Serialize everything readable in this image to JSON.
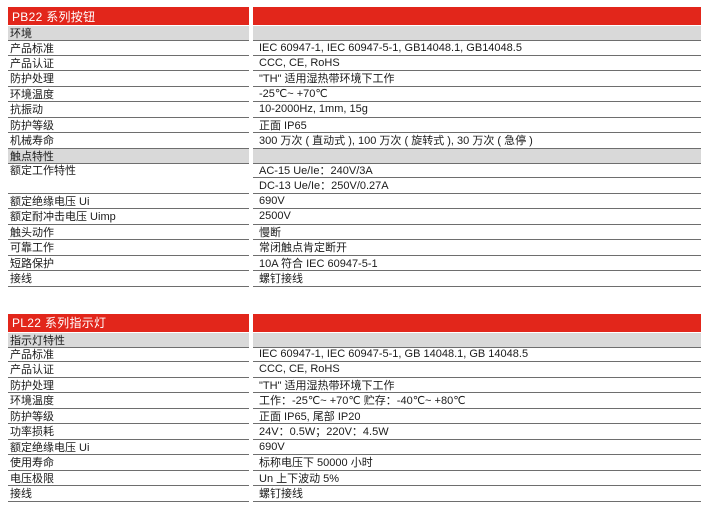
{
  "colors": {
    "header_red": "#E2261B",
    "section_gray": "#D9D9D9",
    "rule_gray": "#6E6E6E",
    "text": "#1A1A1A",
    "title_text": "#FFFFFF"
  },
  "tables": [
    {
      "title": "PB22 系列按钮",
      "sections": [
        {
          "header": "环境",
          "rows": [
            {
              "label": "产品标准",
              "values": [
                "IEC 60947-1, IEC 60947-5-1, GB14048.1, GB14048.5"
              ]
            },
            {
              "label": "产品认证",
              "values": [
                "CCC, CE, RoHS"
              ]
            },
            {
              "label": "防护处理",
              "values": [
                "\"TH\" 适用湿热带环境下工作"
              ]
            },
            {
              "label": "环境温度",
              "values": [
                "-25℃~ +70℃"
              ]
            },
            {
              "label": "抗振动",
              "values": [
                "10-2000Hz, 1mm, 15g"
              ]
            },
            {
              "label": "防护等级",
              "values": [
                "正面 IP65"
              ]
            },
            {
              "label": "机械寿命",
              "values": [
                "300 万次 ( 直动式 ), 100 万次 ( 旋转式 ), 30 万次 ( 急停 )"
              ]
            }
          ]
        },
        {
          "header": "触点特性",
          "rows": [
            {
              "label": "额定工作特性",
              "values": [
                "AC-15 Ue/Ie：240V/3A",
                "DC-13 Ue/Ie：250V/0.27A"
              ]
            },
            {
              "label": "额定绝缘电压 Ui",
              "values": [
                "690V"
              ]
            },
            {
              "label": "额定耐冲击电压 Uimp",
              "values": [
                "2500V"
              ]
            },
            {
              "label": "触头动作",
              "values": [
                "慢断"
              ]
            },
            {
              "label": "可靠工作",
              "values": [
                "常闭触点肯定断开"
              ]
            },
            {
              "label": "短路保护",
              "values": [
                "10A 符合 IEC 60947-5-1"
              ]
            },
            {
              "label": "接线",
              "values": [
                "螺钉接线"
              ]
            }
          ]
        }
      ]
    },
    {
      "title": "PL22 系列指示灯",
      "sections": [
        {
          "header": "指示灯特性",
          "rows": [
            {
              "label": "产品标准",
              "values": [
                "IEC 60947-1, IEC 60947-5-1, GB 14048.1, GB 14048.5"
              ]
            },
            {
              "label": "产品认证",
              "values": [
                "CCC, CE, RoHS"
              ]
            },
            {
              "label": "防护处理",
              "values": [
                "\"TH\" 适用湿热带环境下工作"
              ]
            },
            {
              "label": "环境温度",
              "values": [
                "工作：-25℃~ +70℃  贮存：-40℃~ +80℃"
              ]
            },
            {
              "label": "防护等级",
              "values": [
                "正面 IP65, 尾部 IP20"
              ]
            },
            {
              "label": "功率损耗",
              "values": [
                "24V：0.5W；220V：4.5W"
              ]
            },
            {
              "label": "额定绝缘电压 Ui",
              "values": [
                "690V"
              ]
            },
            {
              "label": "使用寿命",
              "values": [
                "标称电压下 50000 小时"
              ]
            },
            {
              "label": "电压极限",
              "values": [
                "Un 上下波动 5%"
              ]
            },
            {
              "label": "接线",
              "values": [
                "螺钉接线"
              ]
            }
          ]
        }
      ]
    }
  ]
}
